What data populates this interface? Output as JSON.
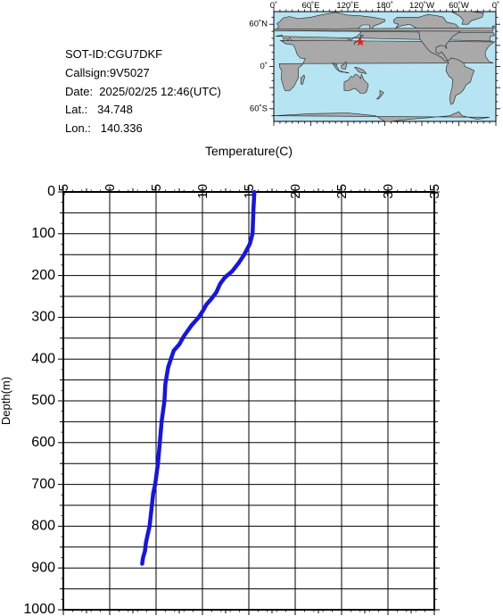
{
  "info": {
    "sot_id": "SOT-ID:CGU7DKF",
    "callsign": "Callsign:9V5027",
    "date": "Date:  2025/02/25 12:46(UTC)",
    "lat": "Lat.:   34.748",
    "lon": "Lon.:   140.336"
  },
  "map": {
    "lon_labels": [
      "0˚",
      "60˚E",
      "120˚E",
      "180˚",
      "120˚W",
      "60˚W",
      "0˚"
    ],
    "lat_labels": [
      "60˚N",
      "0˚",
      "60˚S"
    ],
    "ocean_color": "#b6e4f2",
    "land_color": "#a9a9a9",
    "marker_color": "#e8231a",
    "marker": {
      "lon": 140.336,
      "lat": 34.748
    }
  },
  "chart_data": {
    "type": "line",
    "title": "",
    "xlabel": "Temperature(C)",
    "ylabel": "Depth(m)",
    "xlim": [
      -5,
      35
    ],
    "ylim": [
      1000,
      0
    ],
    "x_ticks": [
      "-5",
      "0",
      "5",
      "10",
      "15",
      "20",
      "25",
      "30",
      "35"
    ],
    "y_ticks": [
      "0",
      "100",
      "200",
      "300",
      "400",
      "500",
      "600",
      "700",
      "800",
      "900",
      "1000"
    ],
    "grid": true,
    "series_color": "#1515e6",
    "series": [
      {
        "x": [
          15.6,
          15.5,
          15.4,
          15.1,
          14.5,
          13.9,
          13.2,
          12.4,
          11.9,
          11.5,
          11.0,
          10.4,
          10.1,
          9.6,
          8.8,
          8.0,
          7.5,
          6.9,
          6.6,
          6.3,
          6.0,
          5.9,
          5.6,
          5.4,
          5.2,
          4.9,
          4.7,
          4.5,
          4.3,
          4.1,
          3.9,
          3.8,
          3.6,
          3.5
        ],
        "y": [
          0,
          40,
          100,
          125,
          150,
          170,
          190,
          205,
          220,
          240,
          255,
          270,
          283,
          300,
          320,
          345,
          365,
          380,
          400,
          420,
          460,
          500,
          550,
          600,
          650,
          700,
          720,
          760,
          800,
          820,
          840,
          860,
          875,
          890
        ]
      }
    ]
  }
}
